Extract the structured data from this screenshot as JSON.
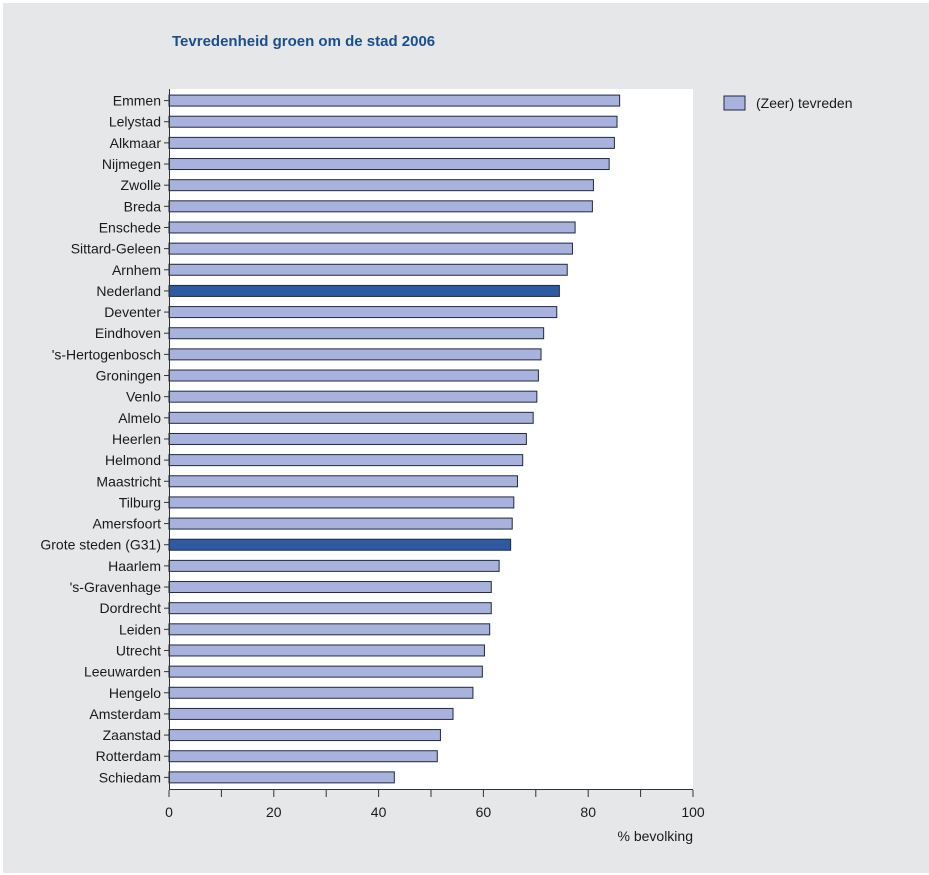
{
  "colors": {
    "default_bar": "#a8b2dc",
    "highlight_bar": "#2d5aa0",
    "bar_stroke": "#1f2a44",
    "title": "#1a4f8c"
  },
  "chart_data": {
    "type": "bar",
    "orientation": "horizontal",
    "title": "Tevredenheid groen om de stad 2006",
    "xlabel": "% bevolking",
    "ylabel": "",
    "xlim": [
      0,
      100
    ],
    "xticks": [
      0,
      20,
      40,
      60,
      80,
      100
    ],
    "grid": false,
    "legend_position": "top-right",
    "categories": [
      "Emmen",
      "Lelystad",
      "Alkmaar",
      "Nijmegen",
      "Zwolle",
      "Breda",
      "Enschede",
      "Sittard-Geleen",
      "Arnhem",
      "Nederland",
      "Deventer",
      "Eindhoven",
      "'s-Hertogenbosch",
      "Groningen",
      "Venlo",
      "Almelo",
      "Heerlen",
      "Helmond",
      "Maastricht",
      "Tilburg",
      "Amersfoort",
      "Grote steden (G31)",
      "Haarlem",
      "'s-Gravenhage",
      "Dordrecht",
      "Leiden",
      "Utrecht",
      "Leeuwarden",
      "Hengelo",
      "Amsterdam",
      "Zaanstad",
      "Rotterdam",
      "Schiedam"
    ],
    "highlighted": [
      "Nederland",
      "Grote steden (G31)"
    ],
    "series": [
      {
        "name": "(Zeer) tevreden",
        "values": [
          86,
          85.5,
          85,
          84,
          81,
          80.8,
          77.5,
          77,
          76,
          74.5,
          74,
          71.5,
          71,
          70.5,
          70.2,
          69.5,
          68.2,
          67.5,
          66.5,
          65.8,
          65.5,
          65.2,
          63,
          61.5,
          61.5,
          61.2,
          60.2,
          59.8,
          58,
          54.2,
          51.8,
          51.2,
          43
        ]
      }
    ]
  }
}
